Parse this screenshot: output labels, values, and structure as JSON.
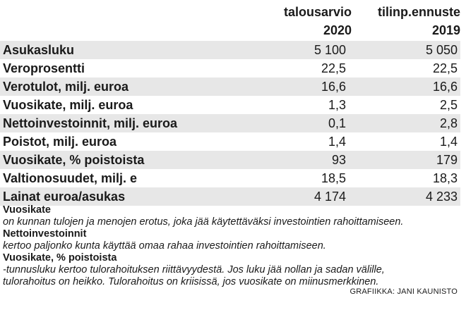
{
  "chart_data": {
    "type": "table",
    "columns": [
      {
        "line1": "talousarvio",
        "line2": "2020"
      },
      {
        "line1": "tilinp.ennuste",
        "line2": "2019"
      }
    ],
    "rows": [
      {
        "label": "Asukasluku",
        "v2020": "5 100",
        "v2019": "5 050"
      },
      {
        "label": "Veroprosentti",
        "v2020": "22,5",
        "v2019": "22,5"
      },
      {
        "label": "Verotulot, milj. euroa",
        "v2020": "16,6",
        "v2019": "16,6"
      },
      {
        "label": "Vuosikate, milj. euroa",
        "v2020": "1,3",
        "v2019": "2,5"
      },
      {
        "label": "Nettoinvestoinnit, milj. euroa",
        "v2020": "0,1",
        "v2019": "2,8"
      },
      {
        "label": "Poistot, milj. euroa",
        "v2020": "1,4",
        "v2019": "1,4"
      },
      {
        "label": "Vuosikate, % poistoista",
        "v2020": "93",
        "v2019": "179"
      },
      {
        "label": "Valtionosuudet, milj. e",
        "v2020": "18,5",
        "v2019": "18,3"
      },
      {
        "label": "Lainat euroa/asukas",
        "v2020": "4 174",
        "v2019": "4 233"
      }
    ]
  },
  "notes": [
    {
      "term": "Vuosikate",
      "desc": [
        "on kunnan tulojen ja menojen erotus, joka jää käytettäväksi investointien rahoittamiseen."
      ]
    },
    {
      "term": "Nettoinvestoinnit",
      "desc": [
        "kertoo paljonko kunta käyttää omaa rahaa investointien rahoittamiseen."
      ]
    },
    {
      "term": "Vuosikate, % poistoista",
      "desc": [
        "-tunnusluku kertoo tulorahoituksen riittävyydestä. Jos luku jää nollan ja sadan välille,",
        "tulorahoitus on heikko. Tulorahoitus on kriisissä, jos vuosikate on miinusmerkkinen."
      ]
    }
  ],
  "credit": "GRAFIIKKA: JANI KAUNISTO",
  "colors": {
    "row_shade": "#e7e7e7",
    "text": "#1a1a1a"
  }
}
